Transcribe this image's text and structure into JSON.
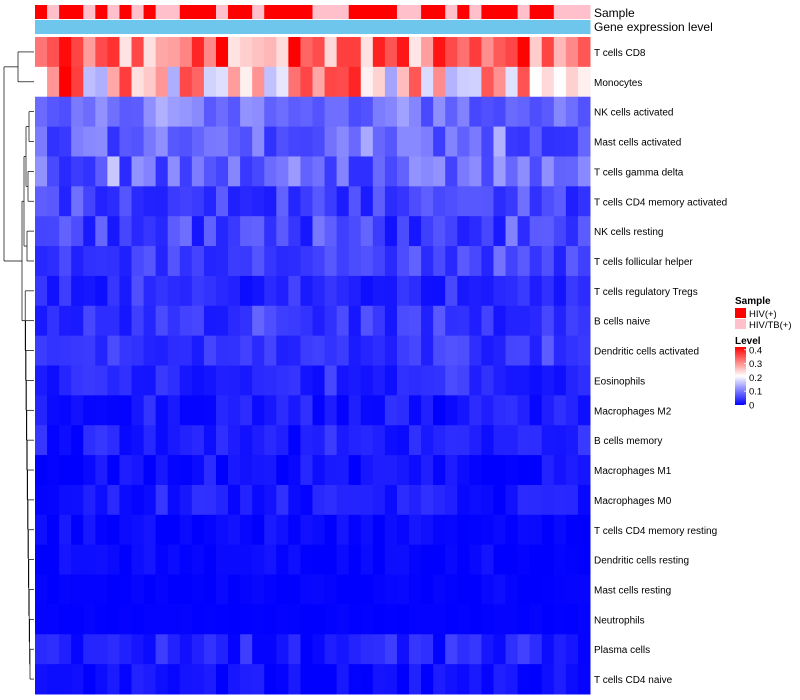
{
  "chart_data": {
    "type": "heatmap",
    "annotation_labels": [
      "Sample",
      "Gene expression level"
    ],
    "sample_groups": [
      "HIV(+)",
      "HIV/TB(+)"
    ],
    "sample_group_colors": [
      "#ff0000",
      "#ffc0cb"
    ],
    "gene_expression_annotation_color": "#6ec6ec",
    "rows": [
      "T cells CD8",
      "Monocytes",
      "NK cells activated",
      "Mast cells activated",
      "T cells gamma delta",
      "T cells CD4 memory activated",
      "NK cells resting",
      "T cells follicular helper",
      "T cells regulatory  Tregs",
      "B cells naive",
      "Dendritic cells activated",
      "Eosinophils",
      "Macrophages M2",
      "B cells memory",
      "Macrophages M1",
      "Macrophages M0",
      "T cells CD4 memory resting",
      "Dendritic cells resting",
      "Mast cells resting",
      "Neutrophils",
      "Plasma cells",
      "T cells CD4 naive"
    ],
    "row_means": [
      0.32,
      0.25,
      0.09,
      0.08,
      0.08,
      0.05,
      0.05,
      0.05,
      0.03,
      0.04,
      0.04,
      0.03,
      0.02,
      0.02,
      0.01,
      0.02,
      0.005,
      0.004,
      0.002,
      0.001,
      0.02,
      0.01
    ],
    "row_spread": [
      0.09,
      0.12,
      0.035,
      0.04,
      0.05,
      0.03,
      0.035,
      0.025,
      0.02,
      0.025,
      0.02,
      0.02,
      0.02,
      0.02,
      0.015,
      0.02,
      0.01,
      0.01,
      0.005,
      0.002,
      0.02,
      0.015
    ],
    "n_samples": 46,
    "legend": {
      "sample_title": "Sample",
      "sample_entries": [
        "HIV(+)",
        "HIV/TB(+)"
      ],
      "level_title": "Level",
      "level_ticks": [
        "0.4",
        "0.3",
        "0.2",
        "0.1",
        "0"
      ],
      "level_tick_values": [
        0.4,
        0.3,
        0.2,
        0.1,
        0
      ],
      "level_range": [
        0,
        0.42
      ],
      "colors": [
        "#0000ff",
        "#ffffff",
        "#ff0000"
      ]
    }
  }
}
